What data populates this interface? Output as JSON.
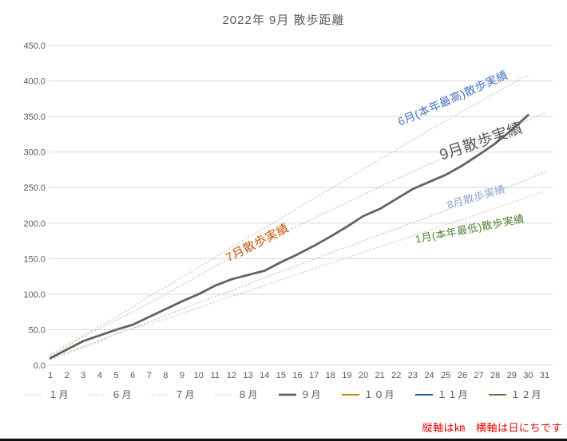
{
  "title": "2022年  9月 散歩距離",
  "note": "縦軸は㎞　横軸は日にちです",
  "note_color": "#E60000",
  "chart_data": {
    "type": "line",
    "title": "2022年  9月 散歩距離",
    "xlabel": "",
    "ylabel": "",
    "x": [
      1,
      2,
      3,
      4,
      5,
      6,
      7,
      8,
      9,
      10,
      11,
      12,
      13,
      14,
      15,
      16,
      17,
      18,
      19,
      20,
      21,
      22,
      23,
      24,
      25,
      26,
      27,
      28,
      29,
      30,
      31
    ],
    "ylim": [
      0,
      450
    ],
    "yticks": [
      0,
      50,
      100,
      150,
      200,
      250,
      300,
      350,
      400,
      450
    ],
    "ytick_labels": [
      "0.0",
      "50.0",
      "100.0",
      "150.0",
      "200.0",
      "250.0",
      "300.0",
      "350.0",
      "400.0",
      "450.0"
    ],
    "grid": "horizontal",
    "legend_position": "bottom",
    "series": [
      {
        "name": "１月",
        "color": "#E6C9AC",
        "width": 1,
        "dash": true,
        "values": [
          9,
          17,
          25,
          33,
          45,
          52,
          58,
          65,
          73,
          81,
          89,
          97,
          104,
          112,
          120,
          128,
          136,
          143,
          151,
          159,
          167,
          174,
          182,
          190,
          198,
          205,
          213,
          221,
          229,
          237,
          245
        ]
      },
      {
        "name": "６月",
        "color": "#C9CCB8",
        "width": 1,
        "dash": true,
        "values": [
          15,
          29,
          42,
          55,
          68,
          82,
          97,
          110,
          124,
          138,
          152,
          166,
          180,
          193,
          207,
          221,
          235,
          248,
          262,
          276,
          290,
          303,
          317,
          331,
          344,
          357,
          370,
          383,
          396,
          408
        ]
      },
      {
        "name": "７月",
        "color": "#E8BE9C",
        "width": 1,
        "dash": true,
        "values": [
          13,
          26,
          40,
          52,
          63,
          75,
          88,
          100,
          113,
          126,
          139,
          151,
          163,
          174,
          185,
          196,
          207,
          218,
          229,
          240,
          251,
          262,
          272,
          283,
          293,
          304,
          314,
          325,
          335,
          345,
          355
        ]
      },
      {
        "name": "８月",
        "color": "#B7C3DE",
        "width": 1,
        "dash": true,
        "values": [
          8,
          17,
          26,
          35,
          44,
          52,
          61,
          70,
          79,
          88,
          97,
          105,
          114,
          123,
          132,
          140,
          149,
          158,
          166,
          175,
          184,
          192,
          201,
          209,
          218,
          227,
          235,
          244,
          253,
          262,
          272
        ]
      },
      {
        "name": "９月",
        "color": "#636363",
        "width": 2.8,
        "dash": false,
        "values": [
          10,
          22,
          34,
          42,
          50,
          57,
          68,
          79,
          90,
          100,
          112,
          121,
          127,
          133,
          145,
          156,
          168,
          181,
          195,
          210,
          220,
          234,
          248,
          258,
          268,
          281,
          296,
          312,
          331,
          352
        ]
      },
      {
        "name": "１０月",
        "color": "#BF9000",
        "width": 2,
        "dash": false,
        "values": []
      },
      {
        "name": "１１月",
        "color": "#2F5597",
        "width": 2,
        "dash": false,
        "values": []
      },
      {
        "name": "１２月",
        "color": "#548235",
        "width": 2,
        "dash": false,
        "values": []
      }
    ],
    "annotations": [
      {
        "text": "6月(本年最高)散歩実績",
        "color": "#4472C4",
        "x": 567,
        "y": 123,
        "rotate": -24,
        "size": 14
      },
      {
        "text": "9月散歩実績",
        "color": "#595959",
        "x": 602,
        "y": 176,
        "rotate": -19,
        "size": 19
      },
      {
        "text": "7月散歩実績",
        "color": "#C55A11",
        "x": 322,
        "y": 304,
        "rotate": -27,
        "size": 15
      },
      {
        "text": "8月散歩実績",
        "color": "#94A8CC",
        "x": 596,
        "y": 246,
        "rotate": -16,
        "size": 13
      },
      {
        "text": "1月(本年最低)散歩実績",
        "color": "#538135",
        "x": 588,
        "y": 286,
        "rotate": -11,
        "size": 13
      }
    ]
  }
}
